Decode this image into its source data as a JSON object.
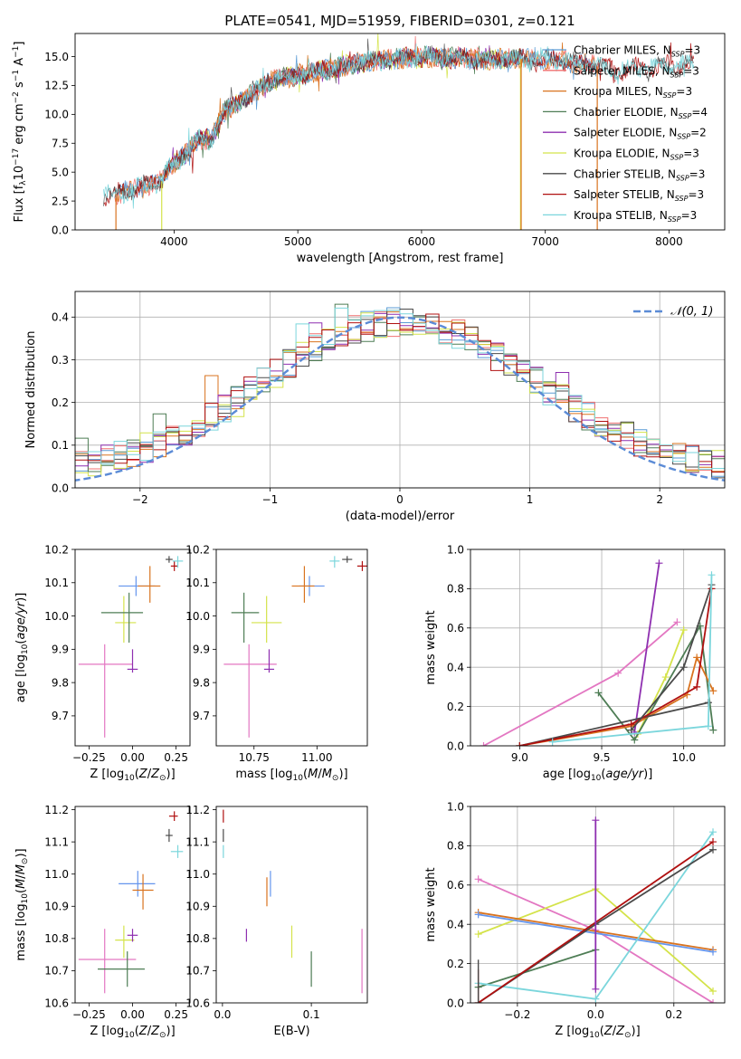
{
  "colors": {
    "Chabrier MILES": "#5a9bd5",
    "Salpeter MILES": "#f07070",
    "Kroupa MILES": "#d9731f",
    "Chabrier ELODIE": "#4e7d55",
    "Salpeter ELODIE": "#8e2fb0",
    "Kroupa ELODIE": "#d4e34a",
    "Chabrier STELIB": "#4a4a4a",
    "Salpeter STELIB": "#b01010",
    "Kroupa STELIB": "#7bd6dc",
    "Pink": "#e377c2",
    "Blue": "#6495ed",
    "Gauss": "#5b8bd6"
  },
  "chart_data": [
    {
      "id": "spectrum",
      "type": "line",
      "title": "PLATE=0541, MJD=51959, FIBERID=0301, z=0.121",
      "xlabel": "wavelength [Angstrom, rest frame]",
      "ylabel": "Flux [f",
      "xlim": [
        3200,
        8450
      ],
      "ylim": [
        0,
        17
      ],
      "xticks": [
        4000,
        5000,
        6000,
        7000,
        8000
      ],
      "yticks": [
        0.0,
        2.5,
        5.0,
        7.5,
        10.0,
        12.5,
        15.0
      ],
      "legend_position": "right",
      "legend": [
        {
          "name": "Chabrier MILES",
          "nssp": "3"
        },
        {
          "name": "Salpeter MILES",
          "nssp": "3"
        },
        {
          "name": "Kroupa MILES",
          "nssp": "3"
        },
        {
          "name": "Chabrier ELODIE",
          "nssp": "4"
        },
        {
          "name": "Salpeter ELODIE",
          "nssp": "2"
        },
        {
          "name": "Kroupa ELODIE",
          "nssp": "3"
        },
        {
          "name": "Chabrier STELIB",
          "nssp": "3"
        },
        {
          "name": "Salpeter STELIB",
          "nssp": "3"
        },
        {
          "name": "Kroupa STELIB",
          "nssp": "3"
        }
      ],
      "continuum": [
        [
          3430,
          2.9
        ],
        [
          3600,
          3.3
        ],
        [
          3750,
          3.8
        ],
        [
          3900,
          4.2
        ],
        [
          3950,
          5.2
        ],
        [
          4050,
          6.2
        ],
        [
          4200,
          7.8
        ],
        [
          4300,
          7.9
        ],
        [
          4400,
          10.2
        ],
        [
          4600,
          11.6
        ],
        [
          4800,
          13.0
        ],
        [
          5000,
          13.4
        ],
        [
          5200,
          13.8
        ],
        [
          5500,
          14.5
        ],
        [
          5800,
          14.8
        ],
        [
          6100,
          15.0
        ],
        [
          6400,
          14.8
        ],
        [
          6700,
          14.8
        ],
        [
          7000,
          14.8
        ],
        [
          7300,
          14.4
        ],
        [
          7600,
          13.8
        ],
        [
          7900,
          14.2
        ],
        [
          8200,
          14.4
        ]
      ]
    },
    {
      "id": "residuals",
      "type": "histogram",
      "xlabel": "(data-model)/error",
      "ylabel": "Normed distribution",
      "xlim": [
        -2.5,
        2.5
      ],
      "ylim": [
        0,
        0.46
      ],
      "xticks": [
        -2,
        -1,
        0,
        1,
        2
      ],
      "yticks": [
        0.0,
        0.1,
        0.2,
        0.3,
        0.4
      ],
      "grid": true,
      "legend_position": "top-right",
      "gauss_label": "𝒩(0, 1)"
    },
    {
      "id": "age_vs_Z",
      "type": "errorbar",
      "xlabel": "Z [log",
      "ylabel": "age  [log",
      "xlim": [
        -0.33,
        0.33
      ],
      "ylim": [
        9.61,
        10.2
      ],
      "xticks": [
        -0.25,
        0.0,
        0.25
      ],
      "yticks": [
        9.7,
        9.8,
        9.9,
        10.0,
        10.1,
        10.2
      ],
      "points": [
        {
          "c": "Pink",
          "x": -0.16,
          "y": 9.855,
          "xe": [
            -0.31,
            -0.0
          ],
          "ye": [
            9.635,
            9.915
          ]
        },
        {
          "c": "Salpeter ELODIE",
          "x": 0.0,
          "y": 9.84,
          "xe": [
            -0.03,
            0.03
          ],
          "ye": [
            9.83,
            9.9
          ]
        },
        {
          "c": "Kroupa ELODIE",
          "x": -0.05,
          "y": 9.98,
          "xe": [
            -0.1,
            0.02
          ],
          "ye": [
            9.92,
            10.06
          ]
        },
        {
          "c": "Chabrier ELODIE",
          "x": -0.02,
          "y": 10.01,
          "xe": [
            -0.18,
            0.06
          ],
          "ye": [
            9.92,
            10.07
          ]
        },
        {
          "c": "Blue",
          "x": 0.02,
          "y": 10.09,
          "xe": [
            -0.08,
            0.13
          ],
          "ye": [
            10.06,
            10.12
          ]
        },
        {
          "c": "Kroupa MILES",
          "x": 0.1,
          "y": 10.09,
          "xe": [
            0.03,
            0.16
          ],
          "ye": [
            10.04,
            10.15
          ]
        },
        {
          "c": "Salpeter STELIB",
          "x": 0.24,
          "y": 10.15,
          "xe": [
            0.22,
            0.26
          ],
          "ye": [
            10.135,
            10.165
          ]
        },
        {
          "c": "Chabrier STELIB",
          "x": 0.21,
          "y": 10.17,
          "xe": [
            0.19,
            0.23
          ],
          "ye": [
            10.16,
            10.18
          ]
        },
        {
          "c": "Kroupa STELIB",
          "x": 0.26,
          "y": 10.165,
          "xe": [
            0.23,
            0.29
          ],
          "ye": [
            10.145,
            10.18
          ]
        }
      ]
    },
    {
      "id": "age_vs_mass",
      "type": "errorbar",
      "xlabel": "mass [log",
      "ylabel": "",
      "xlim": [
        10.6,
        11.2
      ],
      "ylim": [
        9.61,
        10.2
      ],
      "xticks": [
        10.75,
        11.0
      ],
      "yticks": [
        9.7,
        9.8,
        9.9,
        10.0,
        10.1,
        10.2
      ],
      "points": [
        {
          "c": "Pink",
          "x": 10.73,
          "y": 9.855,
          "xe": [
            10.63,
            10.84
          ],
          "ye": [
            9.635,
            9.915
          ]
        },
        {
          "c": "Salpeter ELODIE",
          "x": 10.81,
          "y": 9.84,
          "xe": [
            10.79,
            10.83
          ],
          "ye": [
            9.83,
            9.9
          ]
        },
        {
          "c": "Kroupa ELODIE",
          "x": 10.8,
          "y": 9.98,
          "xe": [
            10.74,
            10.86
          ],
          "ye": [
            9.92,
            10.06
          ]
        },
        {
          "c": "Chabrier ELODIE",
          "x": 10.71,
          "y": 10.01,
          "xe": [
            10.66,
            10.77
          ],
          "ye": [
            9.92,
            10.07
          ]
        },
        {
          "c": "Blue",
          "x": 10.97,
          "y": 10.09,
          "xe": [
            10.93,
            11.03
          ],
          "ye": [
            10.06,
            10.12
          ]
        },
        {
          "c": "Kroupa MILES",
          "x": 10.95,
          "y": 10.09,
          "xe": [
            10.9,
            10.99
          ],
          "ye": [
            10.04,
            10.15
          ]
        },
        {
          "c": "Salpeter STELIB",
          "x": 11.18,
          "y": 10.15,
          "xe": [
            11.16,
            11.2
          ],
          "ye": [
            10.135,
            10.165
          ]
        },
        {
          "c": "Chabrier STELIB",
          "x": 11.12,
          "y": 10.17,
          "xe": [
            11.1,
            11.14
          ],
          "ye": [
            10.16,
            10.18
          ]
        },
        {
          "c": "Kroupa STELIB",
          "x": 11.07,
          "y": 10.165,
          "xe": [
            11.05,
            11.09
          ],
          "ye": [
            10.145,
            10.18
          ]
        }
      ]
    },
    {
      "id": "weight_vs_age",
      "type": "line",
      "xlabel": "age  [log",
      "ylabel": "mass weight",
      "xlim": [
        8.7,
        10.25
      ],
      "ylim": [
        0,
        1.0
      ],
      "xticks": [
        9.0,
        9.5,
        10.0
      ],
      "yticks": [
        0.0,
        0.2,
        0.4,
        0.6,
        0.8,
        1.0
      ],
      "grid": true,
      "series": [
        {
          "c": "Pink",
          "x": [
            8.78,
            9.6,
            9.96
          ],
          "y": [
            0.0,
            0.37,
            0.63
          ]
        },
        {
          "c": "Salpeter ELODIE",
          "x": [
            9.7,
            9.85
          ],
          "y": [
            0.07,
            0.93
          ]
        },
        {
          "c": "Kroupa ELODIE",
          "x": [
            9.72,
            9.89,
            10.0
          ],
          "y": [
            0.06,
            0.35,
            0.59
          ]
        },
        {
          "c": "Chabrier ELODIE",
          "x": [
            9.48,
            9.7,
            10.1,
            10.18
          ],
          "y": [
            0.27,
            0.03,
            0.61,
            0.08
          ]
        },
        {
          "c": "Kroupa MILES",
          "x": [
            9.0,
            9.68,
            10.02,
            10.08,
            10.18
          ],
          "y": [
            0.0,
            0.1,
            0.26,
            0.45,
            0.28
          ]
        },
        {
          "c": "Chabrier STELIB",
          "x": [
            9.0,
            10.15
          ],
          "y": [
            0.0,
            0.22
          ]
        },
        {
          "c": "Salpeter STELIB",
          "x": [
            9.0,
            9.68,
            10.08,
            10.17
          ],
          "y": [
            0.0,
            0.11,
            0.3,
            0.8
          ]
        },
        {
          "c": "Chabrier STELIB",
          "x": [
            9.68,
            10.0,
            10.17
          ],
          "y": [
            0.08,
            0.4,
            0.82
          ]
        },
        {
          "c": "Kroupa STELIB",
          "x": [
            9.2,
            10.15,
            10.17
          ],
          "y": [
            0.02,
            0.1,
            0.87
          ]
        }
      ]
    },
    {
      "id": "mass_vs_Z",
      "type": "errorbar",
      "xlabel": "Z [log",
      "ylabel": "mass [log",
      "xlim": [
        -0.33,
        0.33
      ],
      "ylim": [
        10.6,
        11.21
      ],
      "xticks": [
        -0.25,
        0.0,
        0.25
      ],
      "yticks": [
        10.6,
        10.7,
        10.8,
        10.9,
        11.0,
        11.1,
        11.2
      ],
      "points": [
        {
          "c": "Pink",
          "x": -0.16,
          "y": 10.735,
          "xe": [
            -0.31,
            0.02
          ],
          "ye": [
            10.63,
            10.83
          ]
        },
        {
          "c": "Chabrier ELODIE",
          "x": -0.03,
          "y": 10.705,
          "xe": [
            -0.2,
            0.07
          ],
          "ye": [
            10.65,
            10.76
          ]
        },
        {
          "c": "Kroupa ELODIE",
          "x": -0.05,
          "y": 10.795,
          "xe": [
            -0.1,
            0.01
          ],
          "ye": [
            10.74,
            10.84
          ]
        },
        {
          "c": "Salpeter ELODIE",
          "x": 0.0,
          "y": 10.81,
          "xe": [
            -0.03,
            0.03
          ],
          "ye": [
            10.79,
            10.83
          ]
        },
        {
          "c": "Blue",
          "x": 0.03,
          "y": 10.97,
          "xe": [
            -0.08,
            0.13
          ],
          "ye": [
            10.93,
            11.01
          ]
        },
        {
          "c": "Kroupa MILES",
          "x": 0.06,
          "y": 10.95,
          "xe": [
            -0.0,
            0.12
          ],
          "ye": [
            10.89,
            11.0
          ]
        },
        {
          "c": "Chabrier STELIB",
          "x": 0.21,
          "y": 11.12,
          "xe": [
            0.19,
            0.23
          ],
          "ye": [
            11.1,
            11.14
          ]
        },
        {
          "c": "Kroupa STELIB",
          "x": 0.26,
          "y": 11.07,
          "xe": [
            0.22,
            0.29
          ],
          "ye": [
            11.05,
            11.09
          ]
        },
        {
          "c": "Salpeter STELIB",
          "x": 0.24,
          "y": 11.18,
          "xe": [
            0.21,
            0.26
          ],
          "ye": [
            11.165,
            11.195
          ]
        }
      ]
    },
    {
      "id": "mass_vs_ebv",
      "type": "errorbar",
      "xlabel": "E(B-V)",
      "ylabel": "",
      "xlim": [
        -0.007,
        0.163
      ],
      "ylim": [
        10.6,
        11.21
      ],
      "xticks": [
        0.0,
        0.1
      ],
      "yticks": [
        10.6,
        10.7,
        10.8,
        10.9,
        11.0,
        11.1,
        11.2
      ],
      "points": [
        {
          "c": "Pink",
          "x": 0.157,
          "y": 10.73,
          "xe": [
            0.157,
            0.157
          ],
          "ye": [
            10.63,
            10.83
          ]
        },
        {
          "c": "Chabrier ELODIE",
          "x": 0.1,
          "y": 10.705,
          "xe": [
            0.1,
            0.1
          ],
          "ye": [
            10.65,
            10.76
          ]
        },
        {
          "c": "Kroupa ELODIE",
          "x": 0.078,
          "y": 10.795,
          "xe": [
            0.078,
            0.078
          ],
          "ye": [
            10.74,
            10.84
          ]
        },
        {
          "c": "Salpeter ELODIE",
          "x": 0.027,
          "y": 10.81,
          "xe": [
            0.027,
            0.027
          ],
          "ye": [
            10.79,
            10.83
          ]
        },
        {
          "c": "Blue",
          "x": 0.054,
          "y": 10.97,
          "xe": [
            0.054,
            0.054
          ],
          "ye": [
            10.93,
            11.01
          ]
        },
        {
          "c": "Kroupa MILES",
          "x": 0.05,
          "y": 10.95,
          "xe": [
            0.05,
            0.05
          ],
          "ye": [
            10.9,
            10.99
          ]
        },
        {
          "c": "Chabrier STELIB",
          "x": 0.001,
          "y": 11.12,
          "xe": [
            0.001,
            0.001
          ],
          "ye": [
            11.1,
            11.14
          ]
        },
        {
          "c": "Kroupa STELIB",
          "x": 0.001,
          "y": 11.07,
          "xe": [
            0.001,
            0.001
          ],
          "ye": [
            11.05,
            11.09
          ]
        },
        {
          "c": "Salpeter STELIB",
          "x": 0.001,
          "y": 11.18,
          "xe": [
            0.001,
            0.001
          ],
          "ye": [
            11.16,
            11.2
          ]
        }
      ]
    },
    {
      "id": "weight_vs_Z",
      "type": "line",
      "xlabel": "Z [log",
      "ylabel": "mass weight",
      "xlim": [
        -0.32,
        0.33
      ],
      "ylim": [
        0,
        1.0
      ],
      "xticks": [
        -0.2,
        0.0,
        0.2
      ],
      "yticks": [
        0.0,
        0.2,
        0.4,
        0.6,
        0.8,
        1.0
      ],
      "grid": true,
      "series": [
        {
          "c": "Pink",
          "x": [
            -0.3,
            0.0,
            0.3
          ],
          "y": [
            0.63,
            0.37,
            0.0
          ]
        },
        {
          "c": "Kroupa ELODIE",
          "x": [
            -0.3,
            0.0,
            0.3
          ],
          "y": [
            0.35,
            0.58,
            0.06
          ]
        },
        {
          "c": "Kroupa MILES",
          "x": [
            -0.3,
            0.3
          ],
          "y": [
            0.46,
            0.27
          ]
        },
        {
          "c": "Blue",
          "x": [
            -0.3,
            0.3
          ],
          "y": [
            0.45,
            0.26
          ]
        },
        {
          "c": "Chabrier ELODIE",
          "x": [
            -0.3,
            0.0
          ],
          "y": [
            0.08,
            0.27
          ]
        },
        {
          "c": "Kroupa STELIB",
          "x": [
            -0.3,
            0.0,
            0.3
          ],
          "y": [
            0.1,
            0.02,
            0.87
          ]
        },
        {
          "c": "Chabrier STELIB",
          "x": [
            -0.3,
            0.0,
            0.3
          ],
          "y": [
            0.0,
            0.4,
            0.78
          ]
        },
        {
          "c": "Salpeter STELIB",
          "x": [
            -0.3,
            0.3
          ],
          "y": [
            0.0,
            0.82
          ]
        },
        {
          "c": "Salpeter ELODIE",
          "x": [
            0.0,
            0.0
          ],
          "y": [
            0.07,
            0.93
          ]
        }
      ],
      "vbars": [
        {
          "c": "Salpeter STELIB",
          "x": -0.3,
          "y": [
            0.0,
            0.17
          ]
        },
        {
          "c": "Chabrier STELIB",
          "x": -0.3,
          "y": [
            0.0,
            0.22
          ]
        }
      ]
    }
  ]
}
